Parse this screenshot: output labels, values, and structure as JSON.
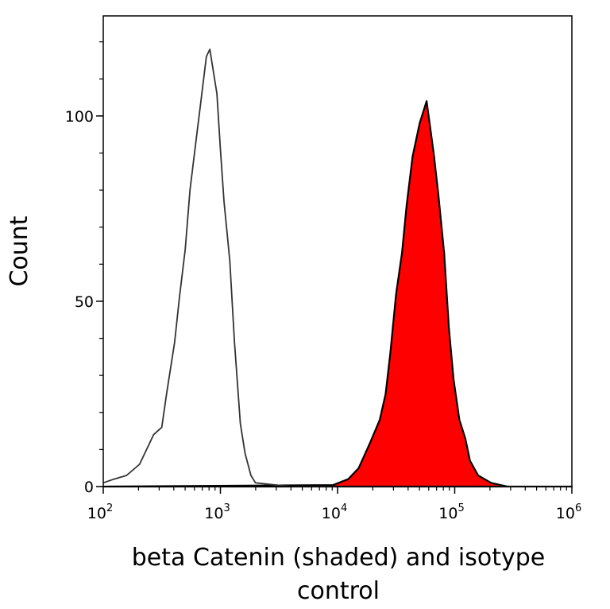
{
  "chart_data": {
    "type": "area",
    "title": "",
    "xlabel_lines": [
      "beta Catenin (shaded) and isotype",
      "control"
    ],
    "ylabel": "Count",
    "x_scale": "log",
    "xlim": [
      100,
      1000000
    ],
    "ylim": [
      0,
      127
    ],
    "x_ticks": [
      {
        "base": "10",
        "exp": "2",
        "value": 100
      },
      {
        "base": "10",
        "exp": "3",
        "value": 1000
      },
      {
        "base": "10",
        "exp": "4",
        "value": 10000
      },
      {
        "base": "10",
        "exp": "5",
        "value": 100000
      },
      {
        "base": "10",
        "exp": "6",
        "value": 1000000
      }
    ],
    "y_ticks": [
      {
        "label": "0",
        "value": 0
      },
      {
        "label": "50",
        "value": 50
      },
      {
        "label": "100",
        "value": 100
      }
    ],
    "y_minor_step": 10,
    "grid": false,
    "series": [
      {
        "style": "outline",
        "color": "#333333",
        "x": [
          100,
          123,
          158,
          204,
          269,
          316,
          347,
          407,
          447,
          501,
          550,
          617,
          676,
          759,
          813,
          933,
          1000,
          1072,
          1202,
          1318,
          1479,
          1622,
          1820,
          1995,
          4000,
          1000000
        ],
        "y": [
          1,
          2,
          3,
          6,
          14,
          16,
          25,
          39,
          51,
          64,
          80,
          93,
          103,
          116,
          118,
          106,
          91,
          77,
          61,
          39,
          17,
          9,
          3,
          1,
          0,
          0
        ]
      },
      {
        "style": "filled",
        "color": "#ff0000",
        "x": [
          100,
          9120,
          12300,
          15140,
          19050,
          22910,
          25700,
          28180,
          31620,
          35480,
          38900,
          43650,
          50120,
          57540,
          66070,
          72440,
          81280,
          89130,
          97720,
          109650,
          123030,
          134900,
          158490,
          204170,
          281840,
          1000000
        ],
        "y": [
          0,
          0.4,
          2,
          5,
          12,
          18,
          25,
          36,
          52,
          63,
          76,
          89,
          98,
          104,
          90,
          79,
          63,
          43,
          29,
          18,
          13,
          7,
          3,
          1,
          0,
          0
        ]
      }
    ]
  }
}
